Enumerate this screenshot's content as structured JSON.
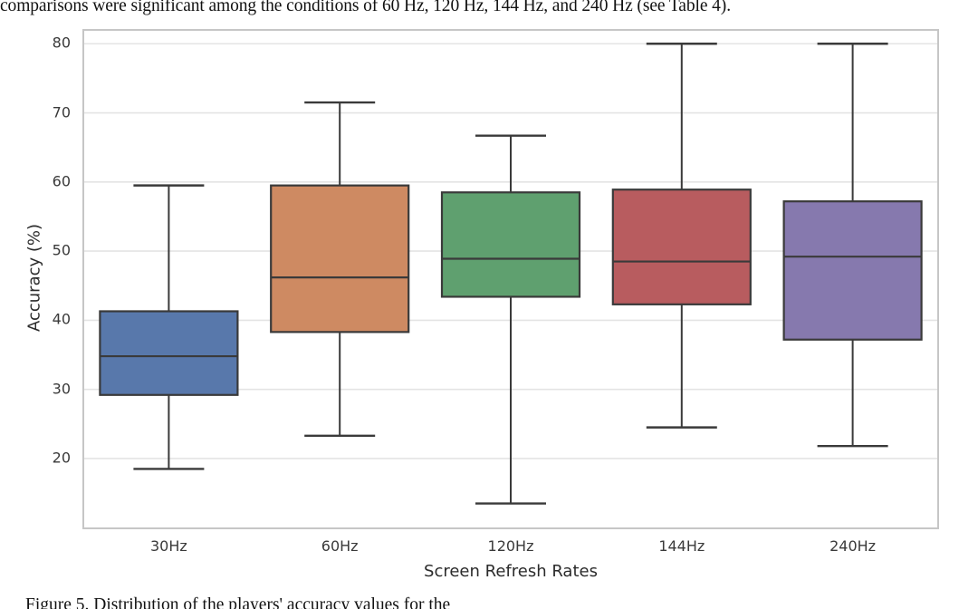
{
  "page": {
    "top_text": "comparisons were significant among the conditions of 60 Hz, 120 Hz, 144 Hz, and 240 Hz (see Table 4).",
    "caption_text": "Figure 5. Distribution of the players' accuracy values for the"
  },
  "chart_data": {
    "type": "boxplot",
    "title": "",
    "xlabel": "Screen Refresh Rates",
    "ylabel": "Accuracy (%)",
    "ylim": [
      9.9,
      82.0
    ],
    "yticks": [
      20,
      30,
      40,
      50,
      60,
      70,
      80
    ],
    "grid": "horizontal gridlines on, whitegrid style",
    "legend": "none",
    "categories": [
      "30Hz",
      "60Hz",
      "120Hz",
      "144Hz",
      "240Hz"
    ],
    "series": [
      {
        "category": "30Hz",
        "whisker_low": 18.5,
        "q1": 29.2,
        "median": 34.8,
        "q3": 41.3,
        "whisker_high": 59.5,
        "color": "#5878AB"
      },
      {
        "category": "60Hz",
        "whisker_low": 23.3,
        "q1": 38.3,
        "median": 46.2,
        "q3": 59.5,
        "whisker_high": 71.5,
        "color": "#CE8A62"
      },
      {
        "category": "120Hz",
        "whisker_low": 13.5,
        "q1": 43.4,
        "median": 48.9,
        "q3": 58.5,
        "whisker_high": 66.7,
        "color": "#5FA06F"
      },
      {
        "category": "144Hz",
        "whisker_low": 24.5,
        "q1": 42.3,
        "median": 48.5,
        "q3": 58.9,
        "whisker_high": 80.0,
        "color": "#B85C5F"
      },
      {
        "category": "240Hz",
        "whisker_low": 21.8,
        "q1": 37.2,
        "median": 49.2,
        "q3": 57.2,
        "whisker_high": 80.0,
        "color": "#8679AE"
      }
    ],
    "colors": {
      "box_edge": "#3A3A3A",
      "median_line": "#3A3A3A",
      "whisker": "#3A3A3A",
      "gridline": "#E4E4E4",
      "panel_border": "#C6C6C6",
      "panel_background": "#FFFFFF",
      "tick_text": "#3A3A3A",
      "axis_title_text": "#2B2B2B"
    }
  }
}
